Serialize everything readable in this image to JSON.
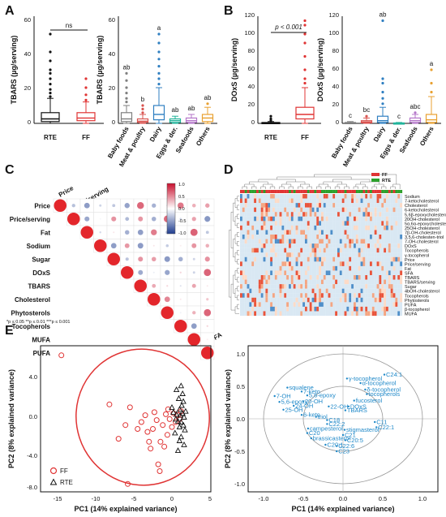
{
  "panel_labels": {
    "a": "A",
    "b": "B",
    "c": "C",
    "d": "D",
    "e": "E"
  },
  "colors": {
    "black": "#111111",
    "red": "#e03434",
    "gray": "#7f7f7f",
    "meat": "#d9534f",
    "dairy": "#2f7fc1",
    "eggs": "#20b39a",
    "seafoods": "#b476c9",
    "others": "#e8a030",
    "loading": "#1e88c8"
  },
  "chart_data": [
    {
      "id": "A1",
      "type": "box",
      "ylabel": "TBARS (µg/serving)",
      "ylim": [
        0,
        60
      ],
      "yticks": [
        0,
        20,
        40,
        60
      ],
      "categories": [
        "RTE",
        "FF"
      ],
      "boxes": [
        {
          "q1": 1,
          "median": 2.5,
          "q3": 6,
          "wlo": 0,
          "whi": 14,
          "outliers": [
            15,
            17,
            19,
            22,
            25,
            28,
            30,
            35,
            40,
            50
          ]
        },
        {
          "q1": 1.5,
          "median": 3,
          "q3": 6,
          "wlo": 0,
          "whi": 12,
          "outliers": [
            13,
            16,
            20,
            25
          ]
        }
      ],
      "annotations": [
        {
          "text": "ns"
        }
      ]
    },
    {
      "id": "A2",
      "type": "box",
      "ylabel": "TBARS (µg/serving)",
      "ylim": [
        0,
        60
      ],
      "yticks": [
        0,
        20,
        40,
        60
      ],
      "categories": [
        "Baby foods",
        "Meat & poultry",
        "Dairy",
        "Eggs & der.",
        "Seafoods",
        "Others"
      ],
      "boxes": [
        {
          "q1": 1,
          "median": 2.5,
          "q3": 6,
          "wlo": 0,
          "whi": 10,
          "outliers": [
            12,
            14,
            17,
            20,
            24,
            28
          ]
        },
        {
          "q1": 0.5,
          "median": 1.2,
          "q3": 2.5,
          "wlo": 0,
          "whi": 5,
          "outliers": [
            6,
            8,
            10
          ]
        },
        {
          "q1": 2,
          "median": 5,
          "q3": 10,
          "wlo": 0,
          "whi": 20,
          "outliers": [
            22,
            25,
            28,
            32,
            36,
            40,
            45,
            50
          ]
        },
        {
          "q1": 0.5,
          "median": 1.5,
          "q3": 2.5,
          "wlo": 0,
          "whi": 4,
          "outliers": []
        },
        {
          "q1": 0.5,
          "median": 1.5,
          "q3": 3,
          "wlo": 0,
          "whi": 5,
          "outliers": []
        },
        {
          "q1": 1,
          "median": 3,
          "q3": 5,
          "wlo": 0,
          "whi": 9,
          "outliers": [
            11
          ]
        }
      ],
      "letters": [
        "ab",
        "b",
        "a",
        "ab",
        "ab",
        "ab"
      ]
    },
    {
      "id": "B1",
      "type": "box",
      "ylabel": "DOxS (µg/serving)",
      "ylim": [
        0,
        120
      ],
      "yticks": [
        0,
        20,
        40,
        60,
        80,
        100,
        120
      ],
      "categories": [
        "RTE",
        "FF"
      ],
      "boxes": [
        {
          "q1": 0,
          "median": 0.3,
          "q3": 1,
          "wlo": 0,
          "whi": 2,
          "outliers": [
            3,
            5,
            8
          ]
        },
        {
          "q1": 5,
          "median": 10,
          "q3": 18,
          "wlo": 0,
          "whi": 40,
          "outliers": [
            45,
            50,
            60,
            75,
            90,
            100,
            110,
            115
          ]
        }
      ],
      "annotations": [
        {
          "text": "p < 0.001"
        }
      ]
    },
    {
      "id": "B2",
      "type": "box",
      "ylabel": "DOxS (µg/serving)",
      "ylim": [
        0,
        120
      ],
      "yticks": [
        0,
        20,
        40,
        60,
        80,
        100,
        120
      ],
      "categories": [
        "Baby foods",
        "Meat & poultry",
        "Dairy",
        "Eggs & der.",
        "Seafoods",
        "Others"
      ],
      "boxes": [
        {
          "q1": 0,
          "median": 0.3,
          "q3": 1,
          "wlo": 0,
          "whi": 2,
          "outliers": []
        },
        {
          "q1": 0.5,
          "median": 1.5,
          "q3": 3,
          "wlo": 0,
          "whi": 6,
          "outliers": [
            8
          ]
        },
        {
          "q1": 1,
          "median": 3,
          "q3": 8,
          "wlo": 0,
          "whi": 18,
          "outliers": [
            22,
            28,
            35,
            45,
            50,
            115
          ]
        },
        {
          "q1": 0,
          "median": 0.2,
          "q3": 0.5,
          "wlo": 0,
          "whi": 1,
          "outliers": []
        },
        {
          "q1": 1,
          "median": 3,
          "q3": 6,
          "wlo": 0,
          "whi": 10,
          "outliers": [
            12
          ]
        },
        {
          "q1": 1,
          "median": 4,
          "q3": 10,
          "wlo": 0,
          "whi": 30,
          "outliers": [
            35,
            45,
            60
          ]
        }
      ],
      "letters": [
        "c",
        "bc",
        "ab",
        "c",
        "abc",
        "a"
      ]
    },
    {
      "id": "C",
      "type": "heatmap",
      "variables": [
        "Price",
        "Price/serving",
        "Fat",
        "Sodium",
        "Sugar",
        "DOxS",
        "TBARS",
        "Cholesterol",
        "Phytosterols",
        "Tocopherols",
        "MUFA",
        "PUFA"
      ],
      "colorbar_ticks": [
        "1.0",
        "0.5",
        "0.0",
        "-0.5",
        "-1.0"
      ],
      "note": "*p ≤ 0.05  **p ≤ 0.01  ***p ≤ 0.001"
    },
    {
      "id": "D",
      "type": "heatmap",
      "legend": [
        "FF",
        "RTE"
      ],
      "row_labels": [
        "Sodium",
        "7-ketocholesterol",
        "Cholesterol",
        "6-ketocholesterol",
        "5,6β-epoxycholesterol",
        "20OH-cholesterol",
        "5α,6α-epoxycholesterol",
        "25OH-cholesterol",
        "7β-OH-cholesterol",
        "3,5,6-cholesten-triol",
        "7-OH-cholesterol",
        "DOxS",
        "Tocopherols",
        "γ-tocopherol",
        "Price",
        "Price/serving",
        "Fat",
        "SFA",
        "TBARS",
        "TBARS/serving",
        "Sugar",
        "4bOH-cholesterol",
        "Tocopherols",
        "Phytosterols",
        "PUFA",
        "β-tocopherol",
        "MUFA"
      ]
    },
    {
      "id": "E1",
      "type": "scatter",
      "xlabel": "PC1 (14% explained variance)",
      "ylabel": "PC2 (8% explained variance)",
      "xlim": [
        -15,
        5
      ],
      "ylim": [
        -8.5,
        6.5
      ],
      "xticks": [
        -15,
        -10,
        -5,
        0,
        5
      ],
      "yticks": [
        "4.0",
        "0.0",
        "-4.0",
        "-8.0"
      ],
      "series": [
        {
          "name": "FF",
          "points": [
            [
              -14.5,
              6.3
            ],
            [
              -8.2,
              1.3
            ],
            [
              -7,
              -2.2
            ],
            [
              -6.1,
              -0.8
            ],
            [
              -5.8,
              -6.8
            ],
            [
              -5.5,
              1
            ],
            [
              -4.5,
              -1.2
            ],
            [
              -4,
              -0.5
            ],
            [
              -3.5,
              0.2
            ],
            [
              -3.2,
              -1.5
            ],
            [
              -3,
              -2.5
            ],
            [
              -2.8,
              -3.2
            ],
            [
              -2.5,
              -1.2
            ],
            [
              -2.3,
              0.5
            ],
            [
              -2,
              -0.3
            ],
            [
              -1.8,
              -4.8
            ],
            [
              -1.6,
              -5.5
            ],
            [
              -1.5,
              -2.5
            ],
            [
              -1.2,
              -0.8
            ],
            [
              -1,
              -3
            ],
            [
              -0.8,
              0.3
            ],
            [
              -0.6,
              -1.8
            ],
            [
              -0.5,
              0.8
            ],
            [
              -0.3,
              -0.2
            ],
            [
              0,
              -1
            ],
            [
              0.2,
              0.4
            ],
            [
              0.5,
              -0.5
            ],
            [
              0.8,
              0.2
            ],
            [
              1,
              -0.2
            ],
            [
              1.2,
              0.6
            ]
          ]
        },
        {
          "name": "RTE",
          "points": [
            [
              0,
              1
            ],
            [
              0.2,
              0.5
            ],
            [
              0.5,
              -0.2
            ],
            [
              0.6,
              0.3
            ],
            [
              0.8,
              -0.4
            ],
            [
              1,
              0.8
            ],
            [
              1,
              -1
            ],
            [
              1.1,
              0.2
            ],
            [
              1.2,
              -0.5
            ],
            [
              1.3,
              1.2
            ],
            [
              1.4,
              0.4
            ],
            [
              1.5,
              -0.8
            ],
            [
              1.5,
              1.6
            ],
            [
              1.6,
              0
            ],
            [
              1.7,
              -1.3
            ],
            [
              1.8,
              0.6
            ],
            [
              1.2,
              -2
            ],
            [
              1,
              -2.4
            ],
            [
              0.8,
              -3.4
            ],
            [
              1.4,
              2.4
            ],
            [
              1.2,
              3.2
            ],
            [
              0.9,
              1.9
            ],
            [
              0.6,
              2.8
            ],
            [
              1.6,
              -2.8
            ],
            [
              0.4,
              -1.6
            ]
          ]
        }
      ]
    },
    {
      "id": "E2",
      "type": "scatter",
      "xlabel": "PC1 (14% explained variance)",
      "ylabel": "PC2 (8% explained variance)",
      "xlim": [
        -1.1,
        1.1
      ],
      "ylim": [
        -1.1,
        1.1
      ],
      "xticks": [
        "-1.0",
        "-0.5",
        "0.0",
        "0.5",
        "1.0"
      ],
      "yticks": [
        "1.0",
        "0.5",
        "0.0",
        "-0.5",
        "-1.0"
      ],
      "loadings": [
        {
          "label": "γ-tocopherol",
          "x": 0.05,
          "y": 0.62
        },
        {
          "label": "C24:1",
          "x": 0.52,
          "y": 0.68
        },
        {
          "label": "α-tocopherol",
          "x": 0.22,
          "y": 0.55
        },
        {
          "label": "δ-tocopherol",
          "x": 0.28,
          "y": 0.45
        },
        {
          "label": "tocopherols",
          "x": 0.3,
          "y": 0.38
        },
        {
          "label": "squalene",
          "x": -0.7,
          "y": 0.48
        },
        {
          "label": "7-keto",
          "x": -0.52,
          "y": 0.42
        },
        {
          "label": "5,6-epoxy",
          "x": -0.45,
          "y": 0.36
        },
        {
          "label": "7-OH",
          "x": -0.86,
          "y": 0.35
        },
        {
          "label": "5,6-epoxy",
          "x": -0.8,
          "y": 0.26
        },
        {
          "label": "20-OH",
          "x": -0.5,
          "y": 0.27
        },
        {
          "label": "24-OH",
          "x": -0.62,
          "y": 0.2
        },
        {
          "label": "25-OH",
          "x": -0.75,
          "y": 0.14
        },
        {
          "label": "fucosterol",
          "x": 0.14,
          "y": 0.28
        },
        {
          "label": "6-keto",
          "x": -0.52,
          "y": 0.06
        },
        {
          "label": "22-OH",
          "x": -0.18,
          "y": 0.19
        },
        {
          "label": "DOxS",
          "x": 0.07,
          "y": 0.19
        },
        {
          "label": "TBARS",
          "x": 0.03,
          "y": 0.13
        },
        {
          "label": "triol",
          "x": -0.34,
          "y": 0.03
        },
        {
          "label": "C18",
          "x": -0.2,
          "y": -0.02
        },
        {
          "label": "C11",
          "x": 0.4,
          "y": -0.05
        },
        {
          "label": "C22:2",
          "x": -0.2,
          "y": -0.08
        },
        {
          "label": "C22:1",
          "x": 0.42,
          "y": -0.13
        },
        {
          "label": "campesterol",
          "x": -0.44,
          "y": -0.15
        },
        {
          "label": "C20",
          "x": -0.45,
          "y": -0.22
        },
        {
          "label": "stigmasterol",
          "x": 0.02,
          "y": -0.17
        },
        {
          "label": "C21",
          "x": 0,
          "y": -0.25
        },
        {
          "label": "brassicasterol",
          "x": -0.4,
          "y": -0.3
        },
        {
          "label": "C20:5",
          "x": 0.03,
          "y": -0.33
        },
        {
          "label": "C20:1",
          "x": -0.22,
          "y": -0.4
        },
        {
          "label": "C22:6",
          "x": -0.08,
          "y": -0.42
        },
        {
          "label": "C23",
          "x": -0.08,
          "y": -0.5
        }
      ]
    }
  ],
  "a1_ticks": {
    "t0": "0",
    "t20": "20",
    "t40": "40",
    "t60": "60"
  },
  "b_ticks": {
    "t0": "0",
    "t20": "20",
    "t40": "40",
    "t60": "60",
    "t80": "80",
    "t100": "100",
    "t120": "120"
  },
  "e1_xticks": {
    "a": "-15",
    "b": "-10",
    "c": "-5",
    "d": "0",
    "e": "5"
  },
  "e1_yticks": {
    "a": "4.0",
    "b": "0.0",
    "c": "-4.0",
    "d": "-8.0"
  },
  "e2_xticks": {
    "a": "-1.0",
    "b": "-0.5",
    "c": "0.0",
    "d": "0.5",
    "e": "1.0"
  },
  "e2_yticks": {
    "a": "1.0",
    "b": "0.5",
    "c": "0.0",
    "d": "-0.5",
    "e": "-1.0"
  }
}
